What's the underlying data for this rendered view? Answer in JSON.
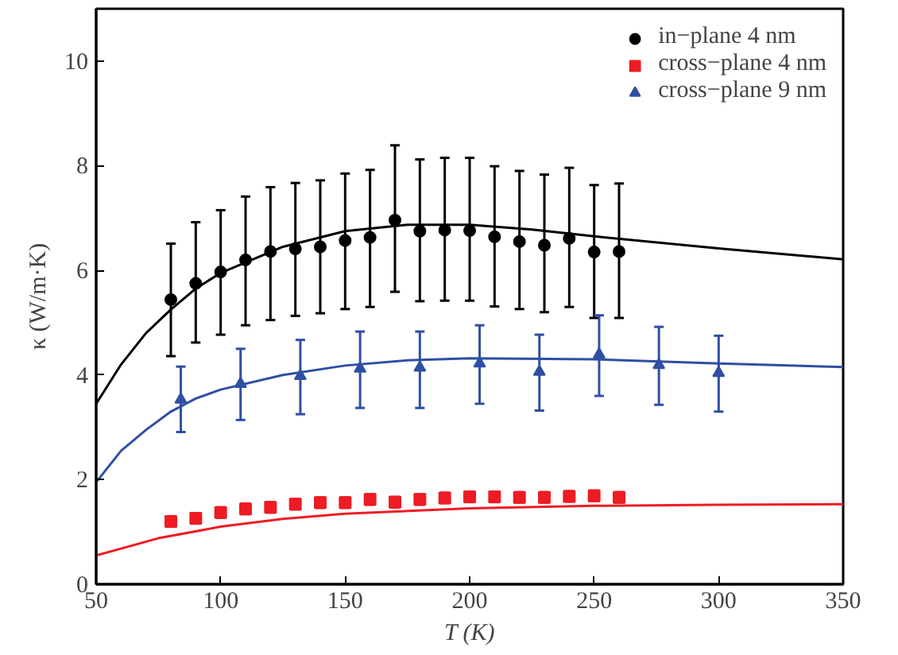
{
  "chart_data": {
    "type": "scatter",
    "xlabel": "T (K)",
    "ylabel": "κ (W/m·K)",
    "xlim": [
      50,
      350
    ],
    "ylim": [
      0,
      11
    ],
    "xticks": [
      50,
      100,
      150,
      200,
      250,
      300,
      350
    ],
    "yticks": [
      0,
      2,
      4,
      6,
      8,
      10
    ],
    "grid": false,
    "legend": "top right",
    "series": [
      {
        "name": "in−plane 4 nm",
        "marker": "circle",
        "color": "#000000",
        "x": [
          80,
          90,
          100,
          110,
          120,
          130,
          140,
          150,
          160,
          170,
          180,
          190,
          200,
          210,
          220,
          230,
          240,
          250,
          260
        ],
        "values": [
          5.44,
          5.75,
          5.97,
          6.2,
          6.36,
          6.41,
          6.45,
          6.57,
          6.63,
          6.96,
          6.75,
          6.77,
          6.76,
          6.64,
          6.55,
          6.48,
          6.61,
          6.35,
          6.36
        ],
        "errors": [
          [
            4.36,
            6.51
          ],
          [
            4.62,
            6.92
          ],
          [
            4.77,
            7.15
          ],
          [
            4.95,
            7.41
          ],
          [
            5.05,
            7.59
          ],
          [
            5.13,
            7.67
          ],
          [
            5.18,
            7.72
          ],
          [
            5.26,
            7.85
          ],
          [
            5.3,
            7.92
          ],
          [
            5.59,
            8.39
          ],
          [
            5.41,
            8.12
          ],
          [
            5.42,
            8.15
          ],
          [
            5.42,
            8.15
          ],
          [
            5.31,
            7.99
          ],
          [
            5.26,
            7.9
          ],
          [
            5.2,
            7.83
          ],
          [
            5.3,
            7.96
          ],
          [
            5.09,
            7.63
          ],
          [
            5.09,
            7.66
          ]
        ]
      },
      {
        "name": "cross−plane 4 nm",
        "marker": "square",
        "color": "#ed1c24",
        "x": [
          80,
          90,
          100,
          110,
          120,
          130,
          140,
          150,
          160,
          170,
          180,
          190,
          200,
          210,
          220,
          230,
          240,
          250,
          260
        ],
        "values": [
          1.2,
          1.26,
          1.37,
          1.44,
          1.47,
          1.53,
          1.56,
          1.56,
          1.62,
          1.57,
          1.62,
          1.65,
          1.67,
          1.67,
          1.66,
          1.66,
          1.68,
          1.69,
          1.66
        ],
        "errors": [
          0.1,
          0.1,
          0.1,
          0.1,
          0.1,
          0.1,
          0.1,
          0.1,
          0.1,
          0.1,
          0.1,
          0.1,
          0.1,
          0.1,
          0.1,
          0.1,
          0.1,
          0.1,
          0.1
        ]
      },
      {
        "name": "cross−plane 9 nm",
        "marker": "triangle",
        "color": "#2e4fa3",
        "x": [
          84,
          108,
          132,
          156,
          180,
          204,
          228,
          252,
          276,
          300
        ],
        "values": [
          3.53,
          3.83,
          3.98,
          4.12,
          4.14,
          4.22,
          4.06,
          4.39,
          4.19,
          4.04
        ],
        "errors": [
          [
            2.91,
            4.16
          ],
          [
            3.14,
            4.5
          ],
          [
            3.25,
            4.67
          ],
          [
            3.37,
            4.83
          ],
          [
            3.37,
            4.83
          ],
          [
            3.45,
            4.95
          ],
          [
            3.32,
            4.77
          ],
          [
            3.6,
            5.14
          ],
          [
            3.43,
            4.92
          ],
          [
            3.3,
            4.75
          ]
        ]
      },
      {
        "type": "line",
        "color": "#000000",
        "x": [
          50,
          60,
          70,
          80,
          90,
          100,
          125,
          150,
          175,
          200,
          225,
          250,
          300,
          350
        ],
        "values": [
          3.45,
          4.2,
          4.8,
          5.25,
          5.65,
          5.95,
          6.45,
          6.75,
          6.87,
          6.87,
          6.78,
          6.65,
          6.42,
          6.21
        ]
      },
      {
        "type": "line",
        "color": "#2e4fa3",
        "x": [
          50,
          60,
          70,
          80,
          90,
          100,
          125,
          150,
          175,
          200,
          250,
          300,
          350
        ],
        "values": [
          1.95,
          2.55,
          2.95,
          3.3,
          3.55,
          3.72,
          4.0,
          4.18,
          4.28,
          4.32,
          4.3,
          4.22,
          4.15
        ]
      },
      {
        "type": "line",
        "color": "#ed1c24",
        "x": [
          50,
          75,
          100,
          125,
          150,
          200,
          250,
          300,
          350
        ],
        "values": [
          0.55,
          0.88,
          1.1,
          1.25,
          1.35,
          1.45,
          1.5,
          1.52,
          1.53
        ]
      }
    ]
  }
}
